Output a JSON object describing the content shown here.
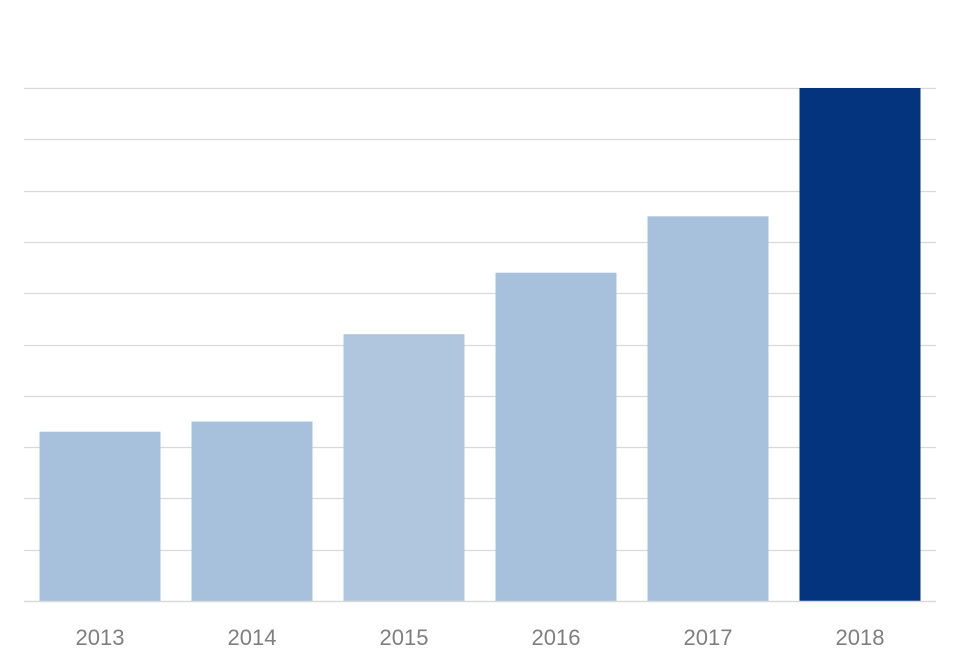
{
  "chart_data": {
    "type": "bar",
    "title": "",
    "xlabel": "",
    "ylabel": "",
    "categories": [
      "2013",
      "2014",
      "2015",
      "2016",
      "2017",
      "2018"
    ],
    "values": [
      3.3,
      3.5,
      5.2,
      6.4,
      7.5,
      10
    ],
    "ylim": [
      0,
      10
    ],
    "gridlines": 10,
    "grid": true,
    "legend": "none",
    "bar_colors": [
      "#a7c0dc",
      "#a7c0dc",
      "#b0c5de",
      "#a7c0dc",
      "#a7c0dc",
      "#05347f"
    ],
    "grid_color": "#d9d9d9",
    "axis_color": "#d9d9d9",
    "tick_label_color": "#7f7f7f"
  }
}
